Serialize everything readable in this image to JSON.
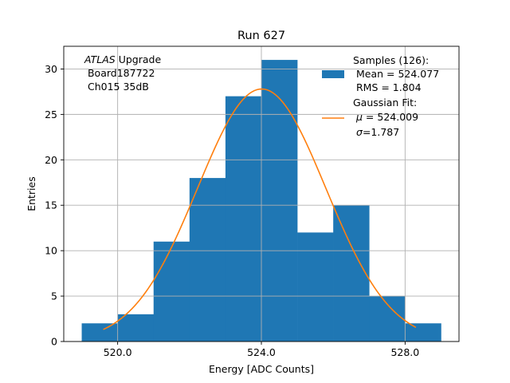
{
  "chart_data": {
    "type": "bar",
    "title": "Run 627",
    "xlabel": "Energy [ADC Counts]",
    "ylabel": "Entries",
    "xlim": [
      518.5,
      529.5
    ],
    "ylim": [
      0,
      32.5
    ],
    "xticks": [
      520.0,
      524.0,
      528.0
    ],
    "xtick_labels": [
      "520.0",
      "524.0",
      "528.0"
    ],
    "yticks": [
      0,
      5,
      10,
      15,
      20,
      25,
      30
    ],
    "ytick_labels": [
      "0",
      "5",
      "10",
      "15",
      "20",
      "25",
      "30"
    ],
    "grid": true,
    "bins": [
      {
        "x0": 519,
        "x1": 520,
        "count": 2
      },
      {
        "x0": 520,
        "x1": 521,
        "count": 3
      },
      {
        "x0": 521,
        "x1": 522,
        "count": 11
      },
      {
        "x0": 522,
        "x1": 523,
        "count": 18
      },
      {
        "x0": 523,
        "x1": 524,
        "count": 27
      },
      {
        "x0": 524,
        "x1": 525,
        "count": 31
      },
      {
        "x0": 525,
        "x1": 526,
        "count": 12
      },
      {
        "x0": 526,
        "x1": 527,
        "count": 15
      },
      {
        "x0": 527,
        "x1": 528,
        "count": 5
      },
      {
        "x0": 528,
        "x1": 529,
        "count": 2
      }
    ],
    "fit": {
      "type": "gaussian",
      "mu": 524.009,
      "sigma": 1.787,
      "amplitude": 27.8,
      "x_range": [
        519.6,
        528.3
      ]
    },
    "colors": {
      "histogram": "#1f77b4",
      "fit": "#ff7f0e",
      "grid": "#b0b0b0"
    },
    "annotation": {
      "italic": "ATLAS",
      "line1_rest": " Upgrade",
      "line2": " Board187722",
      "line3": " Ch015 35dB"
    },
    "legend": {
      "placement": "top-right",
      "hist_line1": "Samples (126):",
      "hist_line2": " Mean = 524.077",
      "hist_line3": " RMS = 1.804",
      "fit_line1": "Gaussian Fit:",
      "fit_mu_symbol": "μ",
      "fit_mu_value": " = 524.009",
      "fit_sigma_symbol": "σ",
      "fit_sigma_value": "=1.787"
    }
  }
}
